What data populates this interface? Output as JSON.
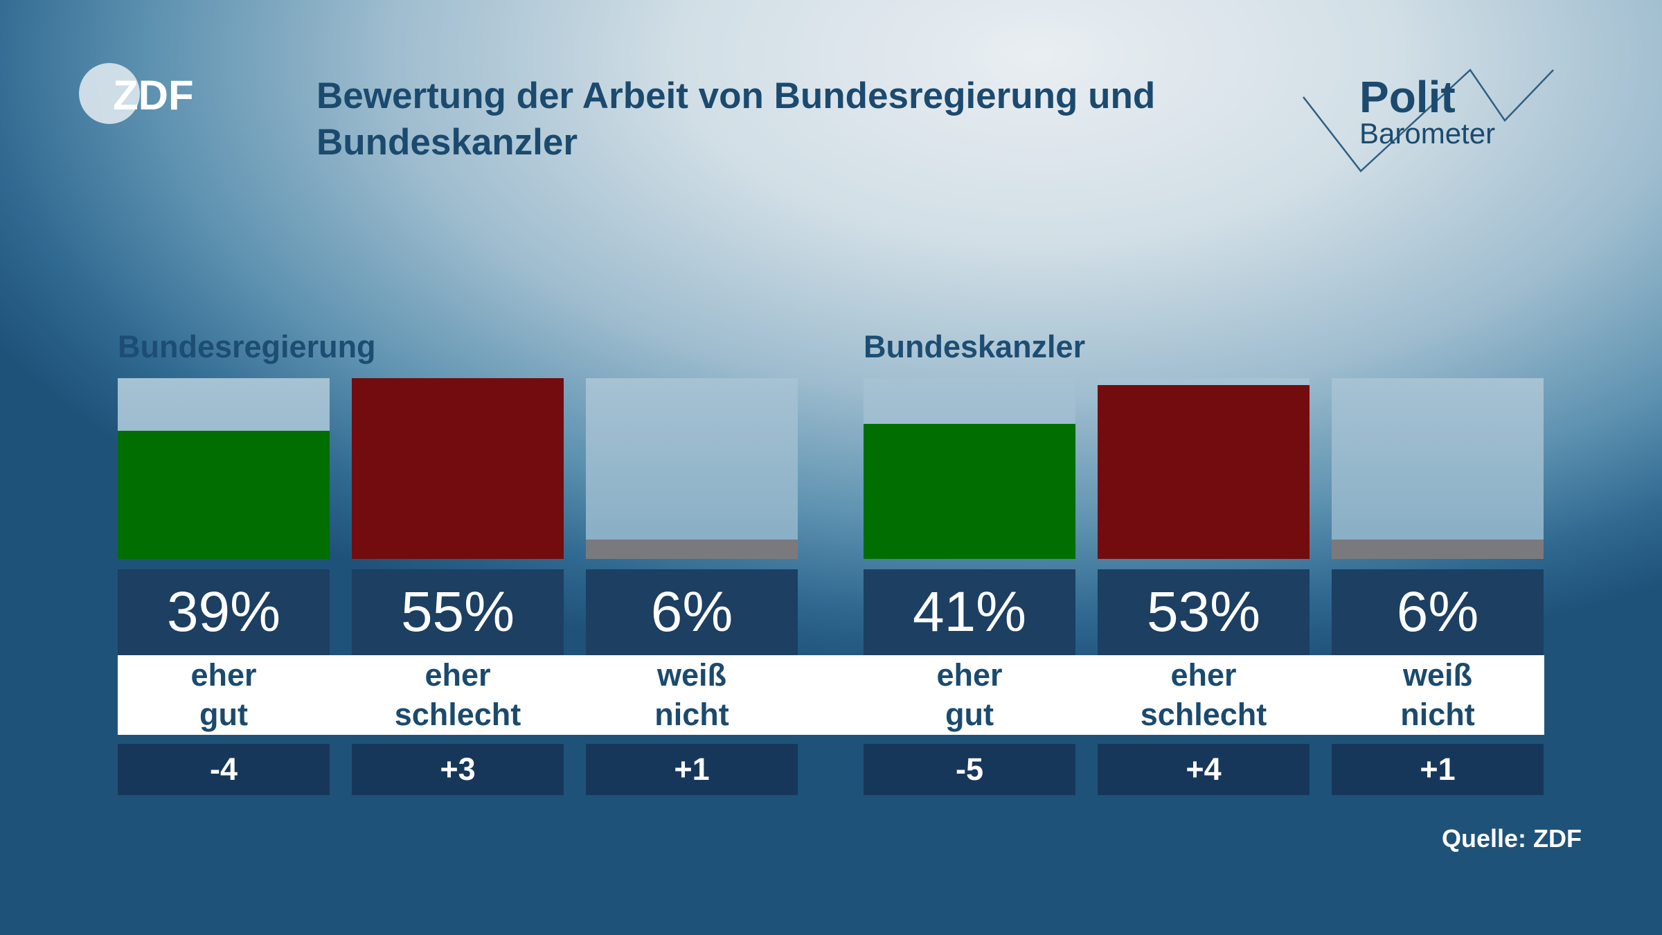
{
  "title": "Bewertung der Arbeit von Bundesregierung und Bundeskanzler",
  "logo_left": "ZDF",
  "logo_right": {
    "line1": "Polit",
    "line2": "Barometer"
  },
  "source": "Quelle: ZDF",
  "chart_data": [
    {
      "type": "bar",
      "title": "Bundesregierung",
      "categories": [
        "eher gut",
        "eher schlecht",
        "weiß nicht"
      ],
      "category_lines": [
        [
          "eher",
          "gut"
        ],
        [
          "eher",
          "schlecht"
        ],
        [
          "weiß",
          "nicht"
        ]
      ],
      "values": [
        39,
        55,
        6
      ],
      "value_labels": [
        "39%",
        "55%",
        "6%"
      ],
      "changes": [
        "-4",
        "+3",
        "+1"
      ],
      "colors": [
        "#006e00",
        "#720c0e",
        "#7a7a7e"
      ],
      "ylim": [
        0,
        55
      ]
    },
    {
      "type": "bar",
      "title": "Bundeskanzler",
      "categories": [
        "eher gut",
        "eher schlecht",
        "weiß nicht"
      ],
      "category_lines": [
        [
          "eher",
          "gut"
        ],
        [
          "eher",
          "schlecht"
        ],
        [
          "weiß",
          "nicht"
        ]
      ],
      "values": [
        41,
        53,
        6
      ],
      "value_labels": [
        "41%",
        "53%",
        "6%"
      ],
      "changes": [
        "-5",
        "+4",
        "+1"
      ],
      "colors": [
        "#006e00",
        "#720c0e",
        "#7a7a7e"
      ],
      "ylim": [
        0,
        55
      ]
    }
  ]
}
